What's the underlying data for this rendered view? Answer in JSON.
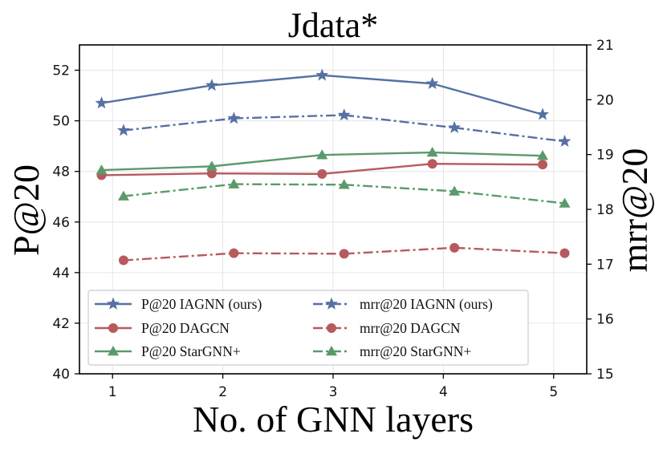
{
  "chart_data": {
    "type": "line",
    "title": "Jdata*",
    "xlabel": "No. of GNN layers",
    "ylabel_left": "P@20",
    "ylabel_right": "mrr@20",
    "x_ticks": [
      1,
      2,
      3,
      4,
      5
    ],
    "y_left_ticks": [
      40,
      42,
      44,
      46,
      48,
      50,
      52
    ],
    "y_right_ticks": [
      15,
      16,
      17,
      18,
      19,
      20,
      21
    ],
    "xlim": [
      0.7,
      5.3
    ],
    "ylim_left": [
      40,
      53
    ],
    "ylim_right": [
      15,
      21
    ],
    "grid": true,
    "legend_position": "lower-left",
    "series": [
      {
        "name": "P@20 IAGNN (ours)",
        "axis": "left",
        "color": "#5571a2",
        "marker": "star",
        "linestyle": "solid",
        "x": [
          0.9,
          1.9,
          2.9,
          3.9,
          4.9
        ],
        "values": [
          50.7,
          51.4,
          51.8,
          51.47,
          50.25
        ]
      },
      {
        "name": "P@20 DAGCN",
        "axis": "left",
        "color": "#b65a5e",
        "marker": "circle",
        "linestyle": "solid",
        "x": [
          0.9,
          1.9,
          2.9,
          3.9,
          4.9
        ],
        "values": [
          47.85,
          47.92,
          47.9,
          48.3,
          48.27
        ]
      },
      {
        "name": "P@20 StarGNN+",
        "axis": "left",
        "color": "#5b9a6a",
        "marker": "triangle",
        "linestyle": "solid",
        "x": [
          0.9,
          1.9,
          2.9,
          3.9,
          4.9
        ],
        "values": [
          48.05,
          48.2,
          48.65,
          48.75,
          48.62
        ]
      },
      {
        "name": "mrr@20 IAGNN (ours)",
        "axis": "right",
        "color": "#5571a2",
        "marker": "star",
        "linestyle": "dashdot",
        "x": [
          1.1,
          2.1,
          3.1,
          4.1,
          5.1
        ],
        "values": [
          19.44,
          19.66,
          19.72,
          19.49,
          19.24
        ]
      },
      {
        "name": "mrr@20 DAGCN",
        "axis": "right",
        "color": "#b65a5e",
        "marker": "circle",
        "linestyle": "dashdot",
        "x": [
          1.1,
          2.1,
          3.1,
          4.1,
          5.1
        ],
        "values": [
          17.07,
          17.2,
          17.19,
          17.3,
          17.2
        ]
      },
      {
        "name": "mrr@20 StarGNN+",
        "axis": "right",
        "color": "#5b9a6a",
        "marker": "triangle",
        "linestyle": "dashdot",
        "x": [
          1.1,
          2.1,
          3.1,
          4.1,
          5.1
        ],
        "values": [
          18.24,
          18.46,
          18.45,
          18.33,
          18.11
        ]
      }
    ]
  }
}
